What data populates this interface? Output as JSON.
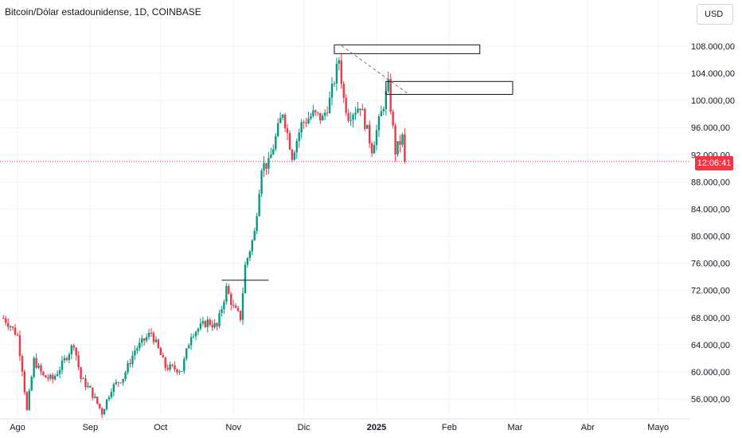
{
  "header": {
    "title": "Bitcoin/Dólar estadounidense, 1D, COINBASE",
    "currency": "USD"
  },
  "current_price_tag": "12:06:41",
  "colors": {
    "up": "#089981",
    "down": "#f23645",
    "grid": "#f0f3fa",
    "price_line": "#f23645"
  },
  "chart_data": {
    "type": "candlestick",
    "y_ticks": [
      "56.000,00",
      "60.000,00",
      "64.000,00",
      "68.000,00",
      "72.000,00",
      "76.000,00",
      "80.000,00",
      "84.000,00",
      "88.000,00",
      "92.000,00",
      "96.000,00",
      "100.000,00",
      "104.000,00",
      "108.000,00"
    ],
    "y_tick_values": [
      56000,
      60000,
      64000,
      68000,
      72000,
      76000,
      80000,
      84000,
      88000,
      92000,
      96000,
      100000,
      104000,
      108000
    ],
    "ylim": [
      53000,
      110500
    ],
    "x_ticks": [
      {
        "label": "Ago",
        "date": "2024-08-01"
      },
      {
        "label": "Sep",
        "date": "2024-09-01"
      },
      {
        "label": "Oct",
        "date": "2024-10-01"
      },
      {
        "label": "Nov",
        "date": "2024-11-01"
      },
      {
        "label": "Dic",
        "date": "2024-12-01"
      },
      {
        "label": "2025",
        "date": "2025-01-01",
        "bold": true
      },
      {
        "label": "Feb",
        "date": "2025-02-01"
      },
      {
        "label": "Mar",
        "date": "2025-03-01"
      },
      {
        "label": "Abr",
        "date": "2025-04-01"
      },
      {
        "label": "Mayo",
        "date": "2025-05-01"
      }
    ],
    "last_price": 91000,
    "closes": [
      {
        "date": "2024-07-26",
        "close": 67900
      },
      {
        "date": "2024-07-29",
        "close": 66800
      },
      {
        "date": "2024-08-01",
        "close": 65300
      },
      {
        "date": "2024-08-03",
        "close": 60500
      },
      {
        "date": "2024-08-05",
        "close": 54200
      },
      {
        "date": "2024-08-08",
        "close": 61700
      },
      {
        "date": "2024-08-12",
        "close": 59300
      },
      {
        "date": "2024-08-16",
        "close": 58900
      },
      {
        "date": "2024-08-20",
        "close": 61100
      },
      {
        "date": "2024-08-25",
        "close": 64200
      },
      {
        "date": "2024-08-28",
        "close": 59000
      },
      {
        "date": "2024-09-01",
        "close": 57300
      },
      {
        "date": "2024-09-06",
        "close": 54000
      },
      {
        "date": "2024-09-10",
        "close": 57600
      },
      {
        "date": "2024-09-15",
        "close": 59200
      },
      {
        "date": "2024-09-20",
        "close": 63200
      },
      {
        "date": "2024-09-27",
        "close": 65800
      },
      {
        "date": "2024-09-30",
        "close": 63300
      },
      {
        "date": "2024-10-03",
        "close": 60700
      },
      {
        "date": "2024-10-10",
        "close": 60300
      },
      {
        "date": "2024-10-14",
        "close": 65600
      },
      {
        "date": "2024-10-21",
        "close": 67400
      },
      {
        "date": "2024-10-25",
        "close": 66600
      },
      {
        "date": "2024-10-29",
        "close": 72300
      },
      {
        "date": "2024-11-01",
        "close": 69400
      },
      {
        "date": "2024-11-04",
        "close": 68000
      },
      {
        "date": "2024-11-06",
        "close": 75600
      },
      {
        "date": "2024-11-10",
        "close": 80500
      },
      {
        "date": "2024-11-13",
        "close": 90400
      },
      {
        "date": "2024-11-16",
        "close": 90600
      },
      {
        "date": "2024-11-22",
        "close": 98400
      },
      {
        "date": "2024-11-26",
        "close": 91900
      },
      {
        "date": "2024-11-30",
        "close": 96500
      },
      {
        "date": "2024-12-05",
        "close": 98000
      },
      {
        "date": "2024-12-09",
        "close": 97300
      },
      {
        "date": "2024-12-12",
        "close": 100000
      },
      {
        "date": "2024-12-16",
        "close": 106100
      },
      {
        "date": "2024-12-18",
        "close": 100200
      },
      {
        "date": "2024-12-20",
        "close": 97800
      },
      {
        "date": "2024-12-25",
        "close": 99300
      },
      {
        "date": "2024-12-30",
        "close": 92900
      },
      {
        "date": "2025-01-03",
        "close": 98100
      },
      {
        "date": "2025-01-06",
        "close": 102200
      },
      {
        "date": "2025-01-09",
        "close": 92500
      },
      {
        "date": "2025-01-12",
        "close": 94500
      },
      {
        "date": "2025-01-13",
        "close": 91000
      }
    ],
    "drawings": {
      "rectangles": [
        {
          "x0": "2024-12-14",
          "x1": "2025-02-14",
          "y0": 106900,
          "y1": 108200
        },
        {
          "x0": "2025-01-05",
          "x1": "2025-02-28",
          "y0": 100900,
          "y1": 102800
        }
      ],
      "trendline": {
        "x0": "2024-12-17",
        "y0": 108100,
        "x1": "2025-01-14",
        "y1": 101100
      },
      "horizontal": {
        "x0": "2024-10-27",
        "x1": "2024-11-16",
        "y": 73500
      }
    }
  }
}
